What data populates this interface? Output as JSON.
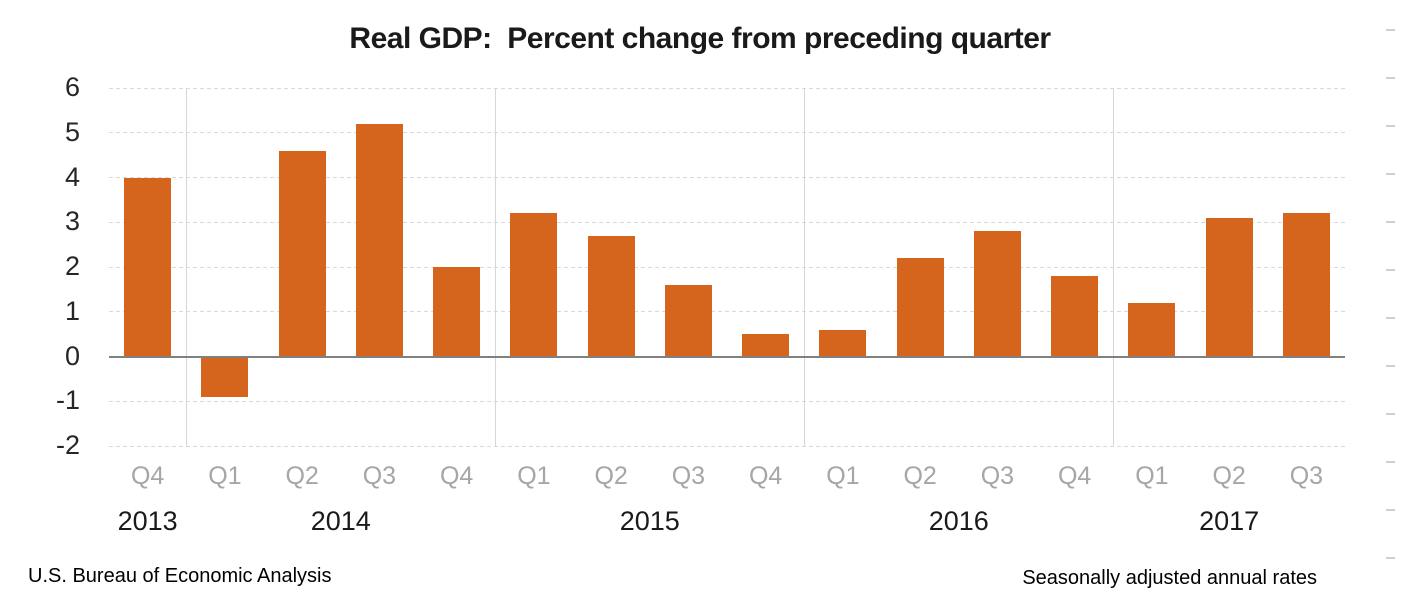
{
  "title": "Real GDP:  Percent change from preceding quarter",
  "footer": {
    "source": "U.S. Bureau of Economic Analysis",
    "note": "Seasonally adjusted annual rates"
  },
  "chart_data": {
    "type": "bar",
    "title": "Real GDP:  Percent change from preceding quarter",
    "xlabel": "",
    "ylabel": "",
    "ylim": [
      -2,
      6
    ],
    "yticks": [
      6,
      5,
      4,
      3,
      2,
      1,
      0,
      -1,
      -2
    ],
    "grid": "horizontal dashed gridlines, solid vertical year separators, legend off",
    "legend": "none",
    "bar_color": "#D5641C",
    "zero_axis_color": "#808080",
    "grid_color": "#D9D9D9",
    "quarter_label_color": "#A6A6A6",
    "categories": [
      "2013 Q4",
      "2014 Q1",
      "2014 Q2",
      "2014 Q3",
      "2014 Q4",
      "2015 Q1",
      "2015 Q2",
      "2015 Q3",
      "2015 Q4",
      "2016 Q1",
      "2016 Q2",
      "2016 Q3",
      "2016 Q4",
      "2017 Q1",
      "2017 Q2",
      "2017 Q3"
    ],
    "values": [
      4.0,
      -0.9,
      4.6,
      5.2,
      2.0,
      3.2,
      2.7,
      1.6,
      0.5,
      0.6,
      2.2,
      2.8,
      1.8,
      1.2,
      3.1,
      3.2
    ],
    "year_groups": [
      {
        "year": "2013",
        "quarters": [
          "Q4"
        ]
      },
      {
        "year": "2014",
        "quarters": [
          "Q1",
          "Q2",
          "Q3",
          "Q4"
        ]
      },
      {
        "year": "2015",
        "quarters": [
          "Q1",
          "Q2",
          "Q3",
          "Q4"
        ]
      },
      {
        "year": "2016",
        "quarters": [
          "Q1",
          "Q2",
          "Q3",
          "Q4"
        ]
      },
      {
        "year": "2017",
        "quarters": [
          "Q1",
          "Q2",
          "Q3"
        ]
      }
    ]
  }
}
